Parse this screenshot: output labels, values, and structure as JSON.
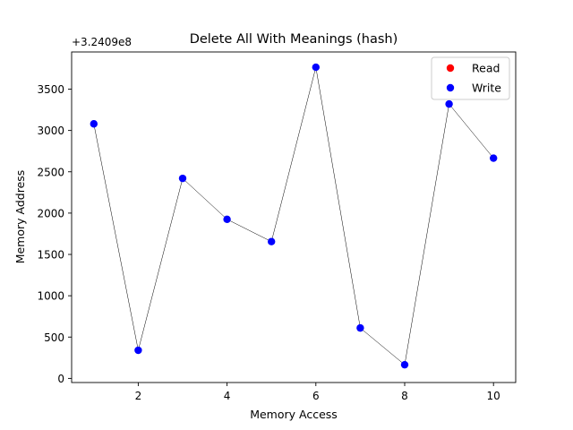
{
  "chart_data": {
    "type": "scatter",
    "title": "Delete All With Meanings (hash)",
    "xlabel": "Memory Access",
    "ylabel": "Memory Address",
    "offset_label": "+3.2409e8",
    "xlim": [
      0.5,
      10.5
    ],
    "ylim": [
      -50,
      3950
    ],
    "xticks": [
      2,
      4,
      6,
      8,
      10
    ],
    "yticks": [
      0,
      500,
      1000,
      1500,
      2000,
      2500,
      3000,
      3500
    ],
    "grid": false,
    "legend_position": "top-right",
    "connecting_line": {
      "color": "#000000"
    },
    "series": [
      {
        "name": "Read",
        "color": "#ff0000",
        "x": [],
        "y": []
      },
      {
        "name": "Write",
        "color": "#0000ff",
        "x": [
          1,
          2,
          3,
          4,
          5,
          6,
          7,
          8,
          9,
          10
        ],
        "y": [
          3080,
          340,
          2420,
          1925,
          1655,
          3765,
          610,
          165,
          3320,
          2665
        ]
      }
    ]
  }
}
